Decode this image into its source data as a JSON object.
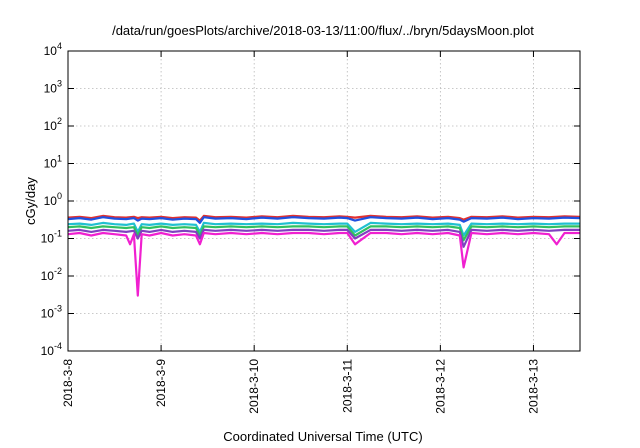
{
  "chart_data": {
    "type": "line",
    "title": "/data/run/goesPlots/archive/2018-03-13/11:00/flux/../bryn/5daysMoon.plot",
    "xlabel": "Coordinated Universal Time (UTC)",
    "ylabel": "cGy/day",
    "yscale": "log",
    "ylim": [
      0.0001,
      10000
    ],
    "xlim": [
      "2018-03-08T00:00",
      "2018-03-13T12:00"
    ],
    "grid": true,
    "y_ticks": [
      {
        "value": 0.0001,
        "base": "10",
        "exp": "-4"
      },
      {
        "value": 0.001,
        "base": "10",
        "exp": "-3"
      },
      {
        "value": 0.01,
        "base": "10",
        "exp": "-2"
      },
      {
        "value": 0.1,
        "base": "10",
        "exp": "-1"
      },
      {
        "value": 1,
        "base": "10",
        "exp": "0"
      },
      {
        "value": 10,
        "base": "10",
        "exp": "1"
      },
      {
        "value": 100,
        "base": "10",
        "exp": "2"
      },
      {
        "value": 1000,
        "base": "10",
        "exp": "3"
      },
      {
        "value": 10000,
        "base": "10",
        "exp": "4"
      }
    ],
    "x_ticks": [
      {
        "value": "2018-03-08T00:00",
        "label": "2018-3-8"
      },
      {
        "value": "2018-03-09T00:00",
        "label": "2018-3-9"
      },
      {
        "value": "2018-03-10T00:00",
        "label": "2018-3-10"
      },
      {
        "value": "2018-03-11T00:00",
        "label": "2018-3-11"
      },
      {
        "value": "2018-03-12T00:00",
        "label": "2018-3-12"
      },
      {
        "value": "2018-03-13T00:00",
        "label": "2018-3-13"
      }
    ],
    "series": [
      {
        "color": "#e03030",
        "x": [
          "2018-03-08T00:00",
          "2018-03-08T03:00",
          "2018-03-08T06:00",
          "2018-03-08T09:00",
          "2018-03-08T12:00",
          "2018-03-08T15:00",
          "2018-03-08T17:00",
          "2018-03-08T18:00",
          "2018-03-08T19:00",
          "2018-03-08T21:00",
          "2018-03-09T00:00",
          "2018-03-09T03:00",
          "2018-03-09T06:00",
          "2018-03-09T09:00",
          "2018-03-09T10:00",
          "2018-03-09T11:00",
          "2018-03-09T14:00",
          "2018-03-09T18:00",
          "2018-03-09T22:00",
          "2018-03-10T02:00",
          "2018-03-10T06:00",
          "2018-03-10T10:00",
          "2018-03-10T14:00",
          "2018-03-10T18:00",
          "2018-03-10T22:00",
          "2018-03-11T00:00",
          "2018-03-11T02:00",
          "2018-03-11T06:00",
          "2018-03-11T10:00",
          "2018-03-11T14:00",
          "2018-03-11T18:00",
          "2018-03-11T22:00",
          "2018-03-12T02:00",
          "2018-03-12T05:00",
          "2018-03-12T06:00",
          "2018-03-12T08:00",
          "2018-03-12T12:00",
          "2018-03-12T16:00",
          "2018-03-12T20:00",
          "2018-03-13T00:00",
          "2018-03-13T04:00",
          "2018-03-13T08:00",
          "2018-03-13T12:00"
        ],
        "y": [
          0.36,
          0.38,
          0.35,
          0.4,
          0.37,
          0.36,
          0.38,
          0.35,
          0.37,
          0.36,
          0.38,
          0.35,
          0.37,
          0.36,
          0.3,
          0.4,
          0.37,
          0.38,
          0.36,
          0.39,
          0.37,
          0.4,
          0.38,
          0.37,
          0.39,
          0.38,
          0.36,
          0.4,
          0.38,
          0.37,
          0.39,
          0.36,
          0.38,
          0.35,
          0.32,
          0.38,
          0.37,
          0.39,
          0.36,
          0.38,
          0.37,
          0.39,
          0.38
        ]
      },
      {
        "color": "#2050e0",
        "x": [
          "2018-03-08T00:00",
          "2018-03-08T03:00",
          "2018-03-08T06:00",
          "2018-03-08T09:00",
          "2018-03-08T12:00",
          "2018-03-08T15:00",
          "2018-03-08T17:00",
          "2018-03-08T18:00",
          "2018-03-08T19:00",
          "2018-03-08T21:00",
          "2018-03-09T00:00",
          "2018-03-09T03:00",
          "2018-03-09T06:00",
          "2018-03-09T09:00",
          "2018-03-09T10:00",
          "2018-03-09T11:00",
          "2018-03-09T14:00",
          "2018-03-09T18:00",
          "2018-03-09T22:00",
          "2018-03-10T02:00",
          "2018-03-10T06:00",
          "2018-03-10T10:00",
          "2018-03-10T14:00",
          "2018-03-10T18:00",
          "2018-03-10T22:00",
          "2018-03-11T00:00",
          "2018-03-11T02:00",
          "2018-03-11T06:00",
          "2018-03-11T10:00",
          "2018-03-11T14:00",
          "2018-03-11T18:00",
          "2018-03-11T22:00",
          "2018-03-12T02:00",
          "2018-03-12T05:00",
          "2018-03-12T06:00",
          "2018-03-12T08:00",
          "2018-03-12T12:00",
          "2018-03-12T16:00",
          "2018-03-12T20:00",
          "2018-03-13T00:00",
          "2018-03-13T04:00",
          "2018-03-13T08:00",
          "2018-03-13T12:00"
        ],
        "y": [
          0.33,
          0.35,
          0.32,
          0.37,
          0.34,
          0.33,
          0.35,
          0.3,
          0.34,
          0.33,
          0.35,
          0.32,
          0.34,
          0.33,
          0.26,
          0.37,
          0.34,
          0.35,
          0.33,
          0.36,
          0.34,
          0.37,
          0.35,
          0.34,
          0.36,
          0.35,
          0.3,
          0.37,
          0.35,
          0.34,
          0.36,
          0.33,
          0.35,
          0.32,
          0.28,
          0.35,
          0.34,
          0.36,
          0.33,
          0.35,
          0.34,
          0.36,
          0.35
        ]
      },
      {
        "color": "#20c0d0",
        "x": [
          "2018-03-08T00:00",
          "2018-03-08T03:00",
          "2018-03-08T06:00",
          "2018-03-08T09:00",
          "2018-03-08T12:00",
          "2018-03-08T15:00",
          "2018-03-08T17:00",
          "2018-03-08T18:00",
          "2018-03-08T19:00",
          "2018-03-08T21:00",
          "2018-03-09T00:00",
          "2018-03-09T03:00",
          "2018-03-09T06:00",
          "2018-03-09T09:00",
          "2018-03-09T10:00",
          "2018-03-09T11:00",
          "2018-03-09T14:00",
          "2018-03-09T18:00",
          "2018-03-09T22:00",
          "2018-03-10T02:00",
          "2018-03-10T06:00",
          "2018-03-10T10:00",
          "2018-03-10T14:00",
          "2018-03-10T18:00",
          "2018-03-10T22:00",
          "2018-03-11T00:00",
          "2018-03-11T02:00",
          "2018-03-11T06:00",
          "2018-03-11T10:00",
          "2018-03-11T14:00",
          "2018-03-11T18:00",
          "2018-03-11T22:00",
          "2018-03-12T02:00",
          "2018-03-12T05:00",
          "2018-03-12T06:00",
          "2018-03-12T08:00",
          "2018-03-12T12:00",
          "2018-03-12T16:00",
          "2018-03-12T20:00",
          "2018-03-13T00:00",
          "2018-03-13T04:00",
          "2018-03-13T08:00",
          "2018-03-13T12:00"
        ],
        "y": [
          0.24,
          0.25,
          0.23,
          0.26,
          0.24,
          0.23,
          0.25,
          0.15,
          0.24,
          0.23,
          0.25,
          0.23,
          0.24,
          0.23,
          0.15,
          0.26,
          0.24,
          0.25,
          0.24,
          0.25,
          0.24,
          0.26,
          0.25,
          0.24,
          0.25,
          0.25,
          0.15,
          0.26,
          0.25,
          0.24,
          0.25,
          0.24,
          0.25,
          0.23,
          0.12,
          0.25,
          0.24,
          0.25,
          0.24,
          0.25,
          0.24,
          0.25,
          0.25
        ]
      },
      {
        "color": "#30c060",
        "x": [
          "2018-03-08T00:00",
          "2018-03-08T03:00",
          "2018-03-08T06:00",
          "2018-03-08T09:00",
          "2018-03-08T12:00",
          "2018-03-08T15:00",
          "2018-03-08T17:00",
          "2018-03-08T18:00",
          "2018-03-08T19:00",
          "2018-03-08T21:00",
          "2018-03-09T00:00",
          "2018-03-09T03:00",
          "2018-03-09T06:00",
          "2018-03-09T09:00",
          "2018-03-09T10:00",
          "2018-03-09T11:00",
          "2018-03-09T14:00",
          "2018-03-09T18:00",
          "2018-03-09T22:00",
          "2018-03-10T02:00",
          "2018-03-10T06:00",
          "2018-03-10T10:00",
          "2018-03-10T14:00",
          "2018-03-10T18:00",
          "2018-03-10T22:00",
          "2018-03-11T00:00",
          "2018-03-11T02:00",
          "2018-03-11T06:00",
          "2018-03-11T10:00",
          "2018-03-11T14:00",
          "2018-03-11T18:00",
          "2018-03-11T22:00",
          "2018-03-12T02:00",
          "2018-03-12T05:00",
          "2018-03-12T06:00",
          "2018-03-12T08:00",
          "2018-03-12T12:00",
          "2018-03-12T16:00",
          "2018-03-12T20:00",
          "2018-03-13T00:00",
          "2018-03-13T04:00",
          "2018-03-13T08:00",
          "2018-03-13T12:00"
        ],
        "y": [
          0.2,
          0.21,
          0.19,
          0.21,
          0.2,
          0.19,
          0.2,
          0.12,
          0.2,
          0.19,
          0.21,
          0.19,
          0.2,
          0.19,
          0.12,
          0.21,
          0.2,
          0.21,
          0.2,
          0.21,
          0.2,
          0.21,
          0.21,
          0.2,
          0.21,
          0.21,
          0.12,
          0.21,
          0.21,
          0.2,
          0.21,
          0.2,
          0.21,
          0.19,
          0.09,
          0.21,
          0.2,
          0.21,
          0.2,
          0.21,
          0.2,
          0.21,
          0.21
        ]
      },
      {
        "color": "#8040c0",
        "x": [
          "2018-03-08T00:00",
          "2018-03-08T03:00",
          "2018-03-08T06:00",
          "2018-03-08T09:00",
          "2018-03-08T12:00",
          "2018-03-08T15:00",
          "2018-03-08T17:00",
          "2018-03-08T18:00",
          "2018-03-08T19:00",
          "2018-03-08T21:00",
          "2018-03-09T00:00",
          "2018-03-09T03:00",
          "2018-03-09T06:00",
          "2018-03-09T09:00",
          "2018-03-09T10:00",
          "2018-03-09T11:00",
          "2018-03-09T14:00",
          "2018-03-09T18:00",
          "2018-03-09T22:00",
          "2018-03-10T02:00",
          "2018-03-10T06:00",
          "2018-03-10T10:00",
          "2018-03-10T14:00",
          "2018-03-10T18:00",
          "2018-03-10T22:00",
          "2018-03-11T00:00",
          "2018-03-11T02:00",
          "2018-03-11T06:00",
          "2018-03-11T10:00",
          "2018-03-11T14:00",
          "2018-03-11T18:00",
          "2018-03-11T22:00",
          "2018-03-12T02:00",
          "2018-03-12T05:00",
          "2018-03-12T06:00",
          "2018-03-12T08:00",
          "2018-03-12T12:00",
          "2018-03-12T16:00",
          "2018-03-12T20:00",
          "2018-03-13T00:00",
          "2018-03-13T04:00",
          "2018-03-13T08:00",
          "2018-03-13T12:00"
        ],
        "y": [
          0.16,
          0.17,
          0.15,
          0.17,
          0.16,
          0.15,
          0.16,
          0.1,
          0.16,
          0.15,
          0.17,
          0.15,
          0.16,
          0.15,
          0.1,
          0.17,
          0.16,
          0.17,
          0.16,
          0.17,
          0.16,
          0.17,
          0.17,
          0.16,
          0.17,
          0.17,
          0.1,
          0.17,
          0.17,
          0.16,
          0.17,
          0.16,
          0.17,
          0.15,
          0.06,
          0.17,
          0.16,
          0.17,
          0.16,
          0.17,
          0.16,
          0.17,
          0.17
        ]
      },
      {
        "color": "#f020d0",
        "x": [
          "2018-03-08T00:00",
          "2018-03-08T03:00",
          "2018-03-08T06:00",
          "2018-03-08T09:00",
          "2018-03-08T12:00",
          "2018-03-08T15:00",
          "2018-03-08T16:00",
          "2018-03-08T17:00",
          "2018-03-08T18:00",
          "2018-03-08T19:00",
          "2018-03-08T21:00",
          "2018-03-09T00:00",
          "2018-03-09T03:00",
          "2018-03-09T06:00",
          "2018-03-09T09:00",
          "2018-03-09T10:00",
          "2018-03-09T11:00",
          "2018-03-09T14:00",
          "2018-03-09T18:00",
          "2018-03-09T22:00",
          "2018-03-10T02:00",
          "2018-03-10T06:00",
          "2018-03-10T10:00",
          "2018-03-10T14:00",
          "2018-03-10T18:00",
          "2018-03-10T22:00",
          "2018-03-11T00:00",
          "2018-03-11T02:00",
          "2018-03-11T06:00",
          "2018-03-11T10:00",
          "2018-03-11T14:00",
          "2018-03-11T18:00",
          "2018-03-11T22:00",
          "2018-03-12T02:00",
          "2018-03-12T05:00",
          "2018-03-12T06:00",
          "2018-03-12T08:00",
          "2018-03-12T12:00",
          "2018-03-12T16:00",
          "2018-03-12T20:00",
          "2018-03-13T00:00",
          "2018-03-13T04:00",
          "2018-03-13T06:00",
          "2018-03-13T08:00",
          "2018-03-13T12:00"
        ],
        "y": [
          0.13,
          0.14,
          0.12,
          0.14,
          0.13,
          0.12,
          0.07,
          0.13,
          0.003,
          0.13,
          0.12,
          0.14,
          0.12,
          0.13,
          0.12,
          0.07,
          0.14,
          0.13,
          0.14,
          0.13,
          0.14,
          0.13,
          0.14,
          0.14,
          0.13,
          0.14,
          0.14,
          0.07,
          0.14,
          0.14,
          0.13,
          0.14,
          0.13,
          0.14,
          0.12,
          0.017,
          0.14,
          0.13,
          0.14,
          0.13,
          0.14,
          0.13,
          0.07,
          0.14,
          0.14
        ]
      }
    ]
  }
}
